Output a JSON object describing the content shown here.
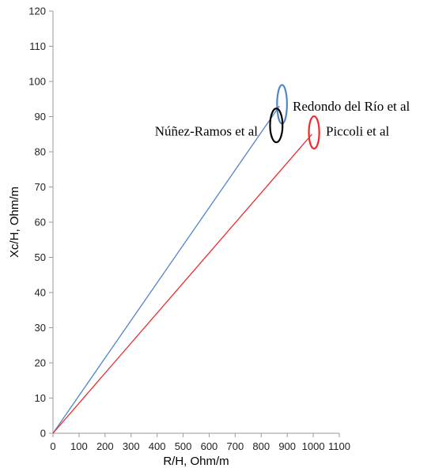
{
  "chart_data": {
    "type": "line",
    "title": "",
    "xlabel": "R/H, Ohm/m",
    "ylabel": "Xc/H, Ohm/m",
    "xlim": [
      0,
      1100
    ],
    "ylim": [
      0,
      120
    ],
    "xticks": [
      0,
      100,
      200,
      300,
      400,
      500,
      600,
      700,
      800,
      900,
      1000,
      1100
    ],
    "yticks": [
      0,
      10,
      20,
      30,
      40,
      50,
      60,
      70,
      80,
      90,
      100,
      110,
      120
    ],
    "grid": false,
    "series": [
      {
        "name": "Redondo del Río et al",
        "color": "#4f86c6",
        "x": [
          0,
          870
        ],
        "y": [
          0,
          93
        ]
      },
      {
        "name": "Piccoli et al",
        "color": "#ee2b2b",
        "x": [
          0,
          995
        ],
        "y": [
          0,
          85
        ]
      }
    ],
    "ellipses": [
      {
        "label": "Redondo del Río et al",
        "color": "#4f86c6",
        "cx": 880,
        "cy": 93.5,
        "rx": 19,
        "ry": 5.5
      },
      {
        "label": "Núñez-Ramos et al",
        "color": "#000000",
        "cx": 858,
        "cy": 87.5,
        "rx": 24,
        "ry": 4.8
      },
      {
        "label": "Piccoli et al",
        "color": "#ee2b2b",
        "cx": 1003,
        "cy": 85.5,
        "rx": 20,
        "ry": 4.6
      }
    ],
    "annotations": [
      {
        "text": "Redondo del Río et al",
        "x": 935,
        "y": 93
      },
      {
        "text": "Núñez-Ramos et al",
        "x": 828,
        "y": 86
      },
      {
        "text": "Piccoli et al",
        "x": 1070,
        "y": 86
      }
    ]
  }
}
